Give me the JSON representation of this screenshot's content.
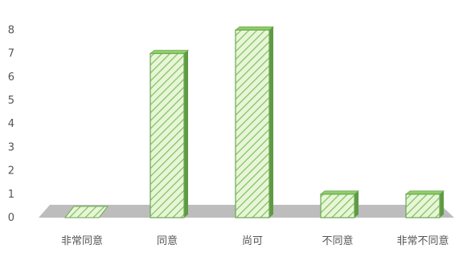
{
  "chart_data": {
    "type": "bar",
    "categories": [
      "非常同意",
      "同意",
      "尚可",
      "不同意",
      "非常不同意"
    ],
    "values": [
      0,
      7,
      8,
      1,
      1
    ],
    "ylim": [
      0,
      8
    ],
    "yticks": [
      "0",
      "1",
      "2",
      "3",
      "4",
      "5",
      "6",
      "7",
      "8"
    ],
    "grid": false,
    "legend": "none",
    "colors": {
      "bar_fill": "#e8f5d8",
      "bar_hatch": "#7cc15a",
      "bar_border": "#6aa84f",
      "bar_side": "#5e9a44",
      "bar_top": "#8fcf6a",
      "floor": "#bdbdbd",
      "text": "#555555"
    }
  }
}
